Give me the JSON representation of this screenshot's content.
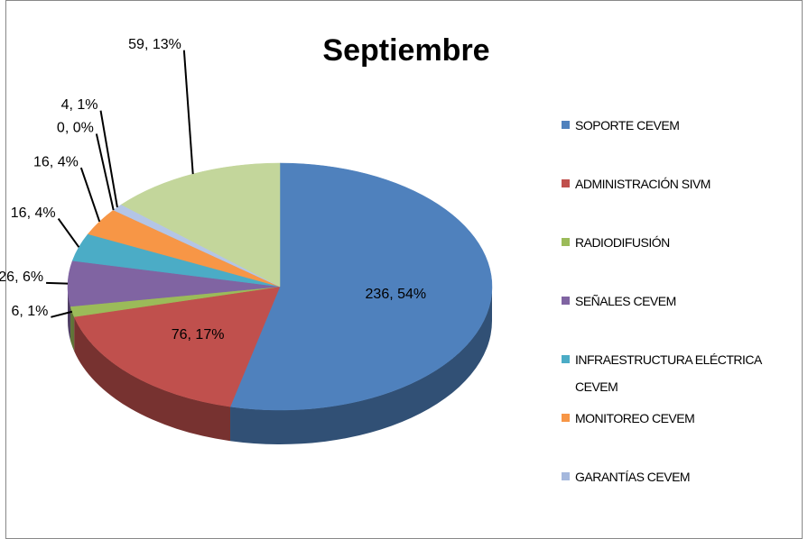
{
  "chart_data": {
    "type": "pie3d",
    "title": "Septiembre",
    "categories": [
      "SOPORTE CEVEM",
      "ADMINISTRACIÓN SIVM",
      "RADIODIFUSIÓN",
      "SEÑALES CEVEM",
      "INFRAESTRUCTURA ELÉCTRICA CEVEM",
      "MONITOREO CEVEM",
      "GARANTÍAS CEVEM",
      null,
      null
    ],
    "values": [
      236,
      76,
      6,
      26,
      16,
      16,
      0,
      4,
      59
    ],
    "value_labels": [
      "236, 54%",
      "76, 17%",
      "6, 1%",
      "26, 6%",
      "16, 4%",
      "16, 4%",
      "0, 0%",
      "4, 1%",
      "59, 13%"
    ],
    "colors": [
      "#4f81bd",
      "#c0504d",
      "#9bbb59",
      "#8064a2",
      "#4bacc6",
      "#f79646",
      "#a5b8dd",
      "#b4c5e6",
      "#c3d69b"
    ],
    "legend": "right"
  }
}
